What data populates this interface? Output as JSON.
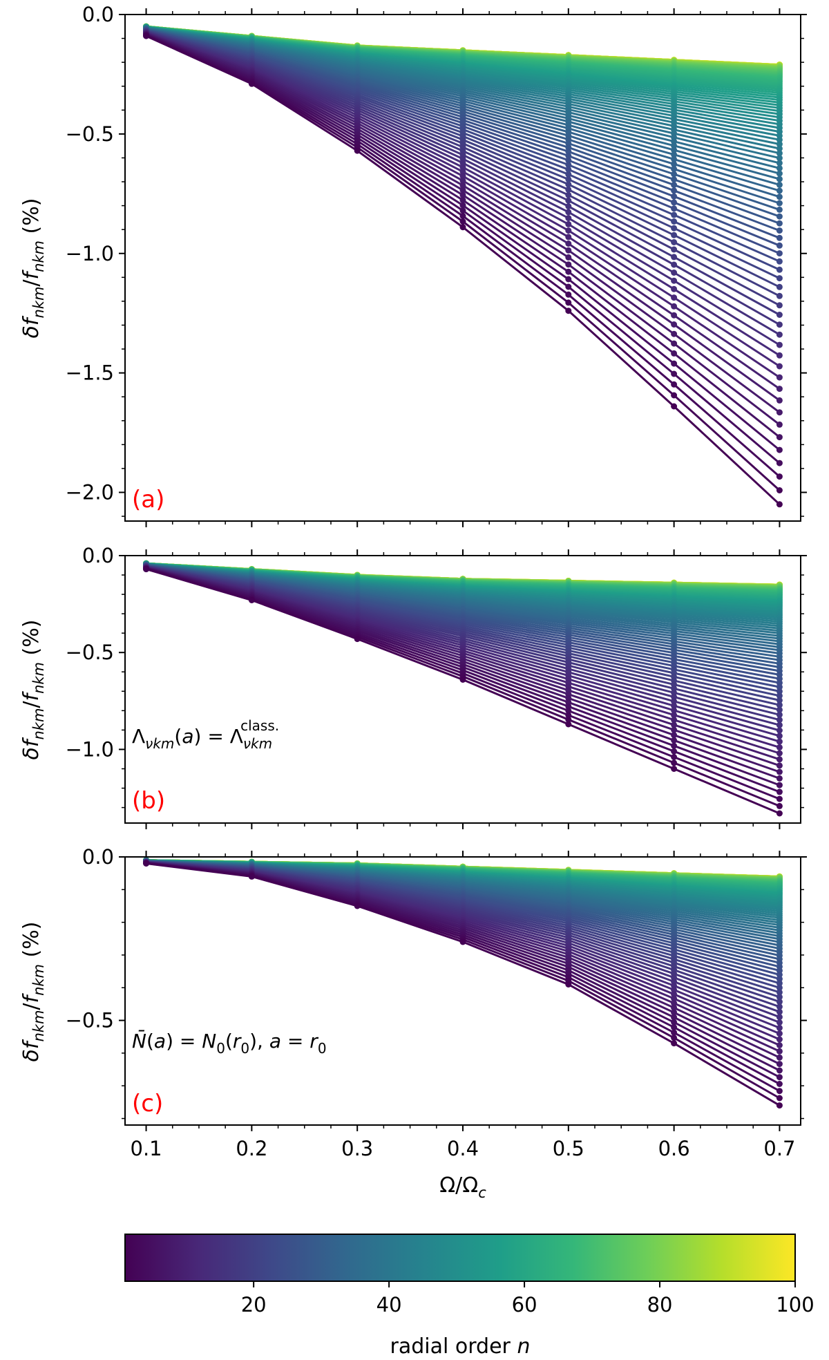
{
  "chart_data": [
    {
      "type": "line",
      "panel": "(a)",
      "ylabel": "δf_nkm/f_nkm (%)",
      "xlabel": "",
      "xlim": [
        0.08,
        0.72
      ],
      "ylim": [
        -2.12,
        0.0
      ],
      "yticks": [
        0.0,
        -0.5,
        -1.0,
        -1.5,
        -2.0
      ],
      "ytick_labels": [
        "0.0",
        "−0.5",
        "−1.0",
        "−1.5",
        "−2.0"
      ],
      "annotation": "",
      "x": [
        0.1,
        0.2,
        0.3,
        0.4,
        0.5,
        0.6,
        0.7
      ],
      "series_colored_by": "radial order n (1–100)",
      "series_envelope": {
        "n_min_values": [
          -0.09,
          -0.29,
          -0.57,
          -0.89,
          -1.24,
          -1.64,
          -2.05
        ],
        "n_max_values": [
          -0.05,
          -0.09,
          -0.13,
          -0.15,
          -0.17,
          -0.19,
          -0.21
        ]
      }
    },
    {
      "type": "line",
      "panel": "(b)",
      "ylabel": "δf_nkm/f_nkm (%)",
      "xlabel": "",
      "xlim": [
        0.08,
        0.72
      ],
      "ylim": [
        -1.38,
        0.0
      ],
      "yticks": [
        0.0,
        -0.5,
        -1.0
      ],
      "ytick_labels": [
        "0.0",
        "−0.5",
        "−1.0"
      ],
      "annotation": "Λνkm(a) = Λνkm class.",
      "x": [
        0.1,
        0.2,
        0.3,
        0.4,
        0.5,
        0.6,
        0.7
      ],
      "series_colored_by": "radial order n (1–100)",
      "series_envelope": {
        "n_min_values": [
          -0.07,
          -0.23,
          -0.43,
          -0.64,
          -0.87,
          -1.1,
          -1.33
        ],
        "n_max_values": [
          -0.04,
          -0.07,
          -0.1,
          -0.12,
          -0.13,
          -0.14,
          -0.15
        ]
      }
    },
    {
      "type": "line",
      "panel": "(c)",
      "ylabel": "δf_nkm/f_nkm (%)",
      "xlabel": "Ω/Ωc",
      "xlim": [
        0.08,
        0.72
      ],
      "ylim": [
        -0.82,
        0.0
      ],
      "yticks": [
        0.0,
        -0.5
      ],
      "ytick_labels": [
        "0.0",
        "−0.5"
      ],
      "xticks": [
        0.1,
        0.2,
        0.3,
        0.4,
        0.5,
        0.6,
        0.7
      ],
      "xtick_labels": [
        "0.1",
        "0.2",
        "0.3",
        "0.4",
        "0.5",
        "0.6",
        "0.7"
      ],
      "annotation": "N̄(a) = N0(r0), a = r0",
      "x": [
        0.1,
        0.2,
        0.3,
        0.4,
        0.5,
        0.6,
        0.7
      ],
      "series_colored_by": "radial order n (1–100)",
      "series_envelope": {
        "n_min_values": [
          -0.02,
          -0.06,
          -0.15,
          -0.26,
          -0.39,
          -0.57,
          -0.76
        ],
        "n_max_values": [
          -0.01,
          -0.015,
          -0.02,
          -0.03,
          -0.04,
          -0.05,
          -0.06
        ]
      }
    }
  ],
  "colorbar": {
    "label": "radial order n",
    "range": [
      1,
      100
    ],
    "ticks": [
      20,
      40,
      60,
      80,
      100
    ],
    "tick_labels": [
      "20",
      "40",
      "60",
      "80",
      "100"
    ],
    "colormap": "viridis",
    "colors": [
      "#440154",
      "#482878",
      "#3e4989",
      "#31688e",
      "#26828e",
      "#1f9e89",
      "#35b779",
      "#6ece58",
      "#b5de2b",
      "#fde725"
    ]
  }
}
